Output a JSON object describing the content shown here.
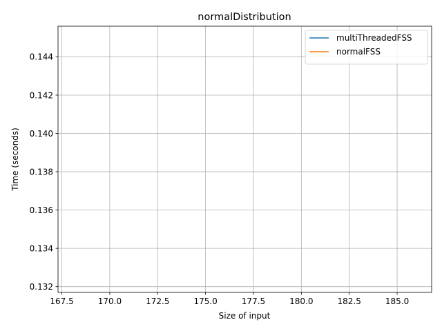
{
  "chart_data": {
    "type": "line",
    "title": "normalDistribution",
    "xlabel": "Size of input",
    "ylabel": "Time (seconds)",
    "xlim": [
      167.3,
      186.8
    ],
    "ylim": [
      0.1317,
      0.1456
    ],
    "xticks": [
      167.5,
      170.0,
      172.5,
      175.0,
      177.5,
      180.0,
      182.5,
      185.0
    ],
    "xtick_labels": [
      "167.5",
      "170.0",
      "172.5",
      "175.0",
      "177.5",
      "180.0",
      "182.5",
      "185.0"
    ],
    "yticks": [
      0.132,
      0.134,
      0.136,
      0.138,
      0.14,
      0.142,
      0.144
    ],
    "ytick_labels": [
      "0.132",
      "0.134",
      "0.136",
      "0.138",
      "0.140",
      "0.142",
      "0.144"
    ],
    "grid": true,
    "legend_position": "top-right",
    "series": [
      {
        "name": "multiThreadedFSS",
        "color": "#1f77b4",
        "x": [],
        "y": []
      },
      {
        "name": "normalFSS",
        "color": "#ff7f0e",
        "x": [],
        "y": []
      }
    ]
  }
}
